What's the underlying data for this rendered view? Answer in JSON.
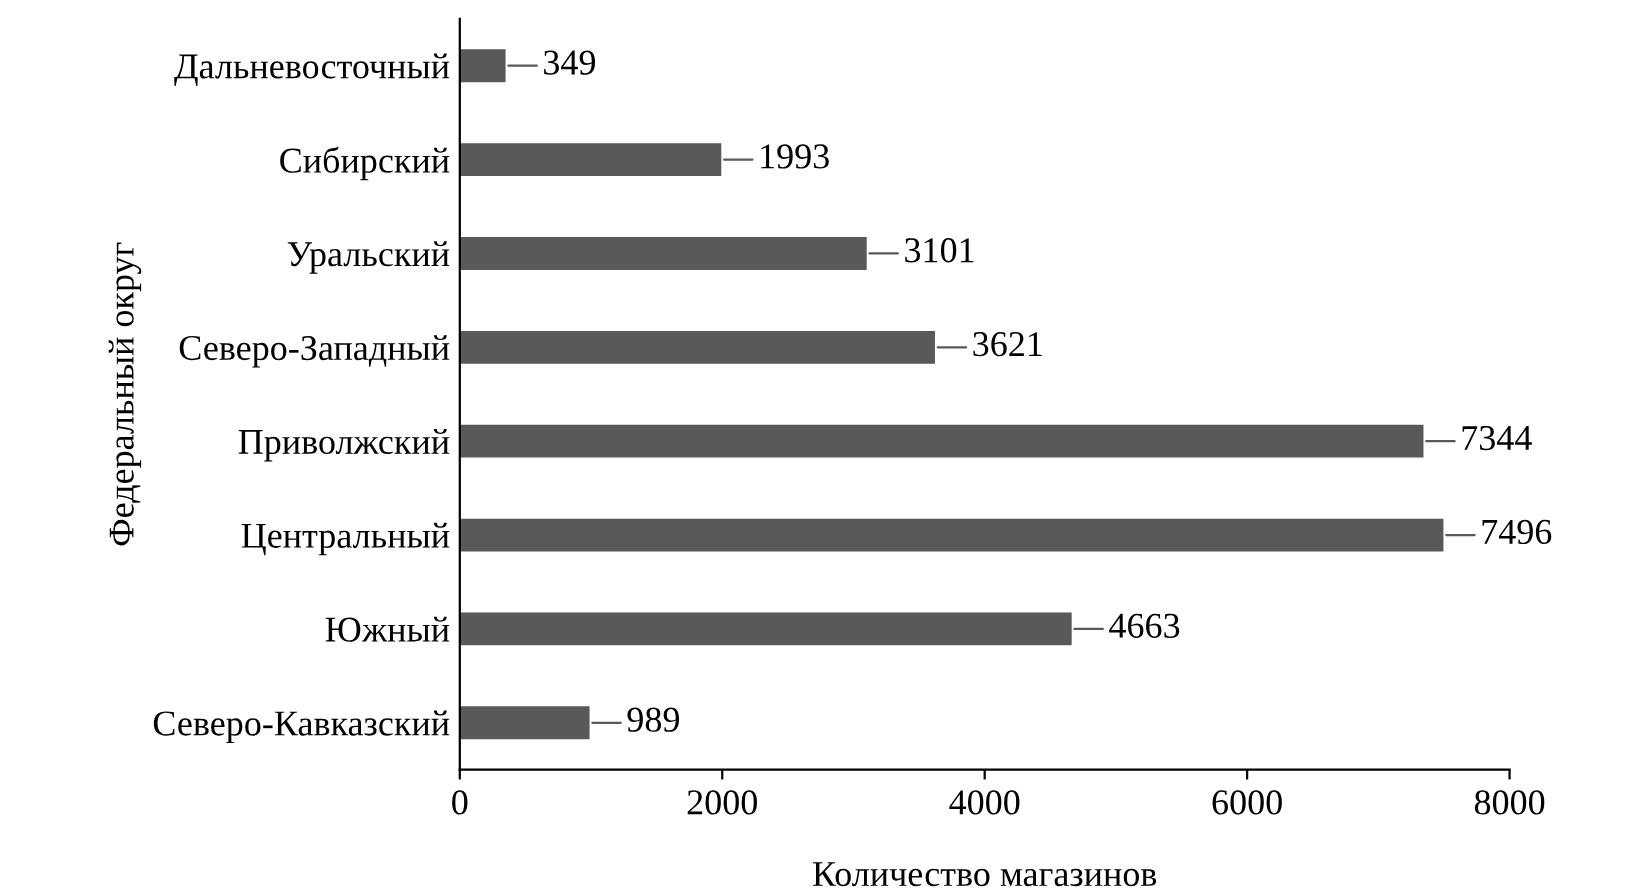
{
  "chart_data": {
    "type": "bar",
    "orientation": "horizontal",
    "xlabel": "Количество магазинов",
    "ylabel": "Федеральный округ",
    "categories": [
      "Дальневосточный",
      "Сибирский",
      "Уральский",
      "Северо-Западный",
      "Приволжский",
      "Центральный",
      "Южный",
      "Северо-Кавказский"
    ],
    "values": [
      349,
      1993,
      3101,
      3621,
      7344,
      7496,
      4663,
      989
    ],
    "color": "#595959",
    "xlim": [
      0,
      8000
    ],
    "xticks": [
      0,
      2000,
      4000,
      6000,
      8000
    ],
    "grid": false,
    "data_labels": true
  }
}
